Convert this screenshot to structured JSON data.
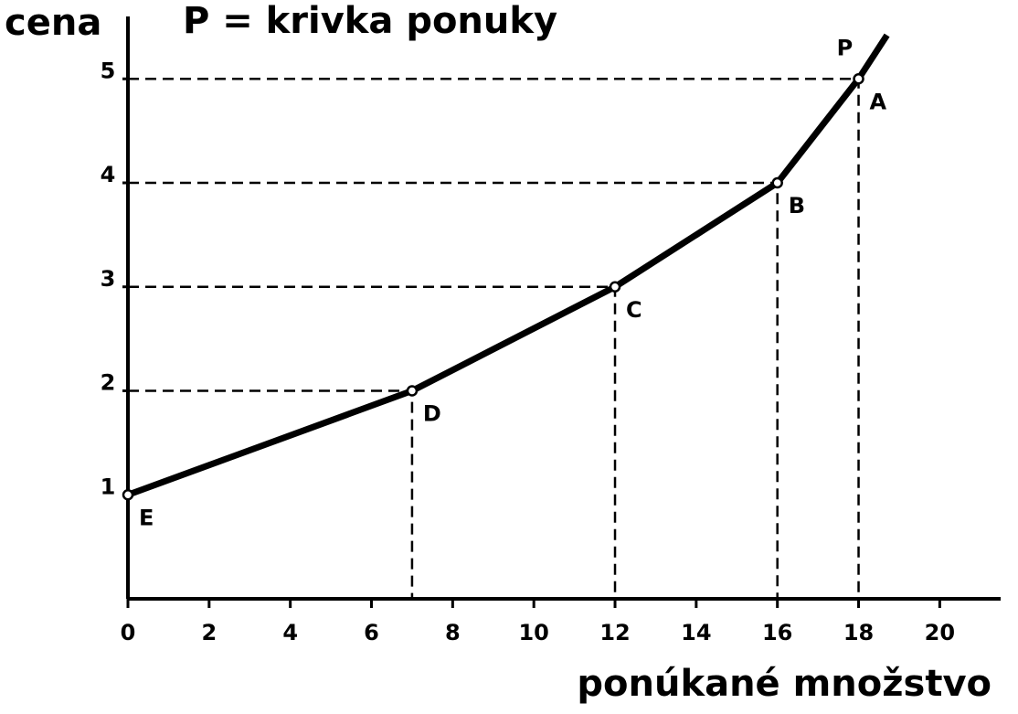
{
  "chart_data": {
    "type": "line",
    "title": "P = krivka ponuky",
    "y_label": "cena",
    "x_label": "ponúkané množstvo",
    "x": [
      0,
      7,
      12,
      16,
      18,
      18.7
    ],
    "series": [
      {
        "name": "P",
        "color": "#000000",
        "values": [
          1,
          2,
          3,
          4,
          5,
          5.42
        ],
        "point_labels": [
          "E",
          "D",
          "C",
          "B",
          "A",
          null
        ]
      }
    ],
    "xlim": [
      0,
      21.5
    ],
    "ylim": [
      0,
      5.6
    ],
    "xticks": [
      0,
      2,
      4,
      6,
      8,
      10,
      12,
      14,
      16,
      18,
      20
    ],
    "yticks": [
      1,
      2,
      3,
      4,
      5
    ],
    "guide_lines": true
  }
}
